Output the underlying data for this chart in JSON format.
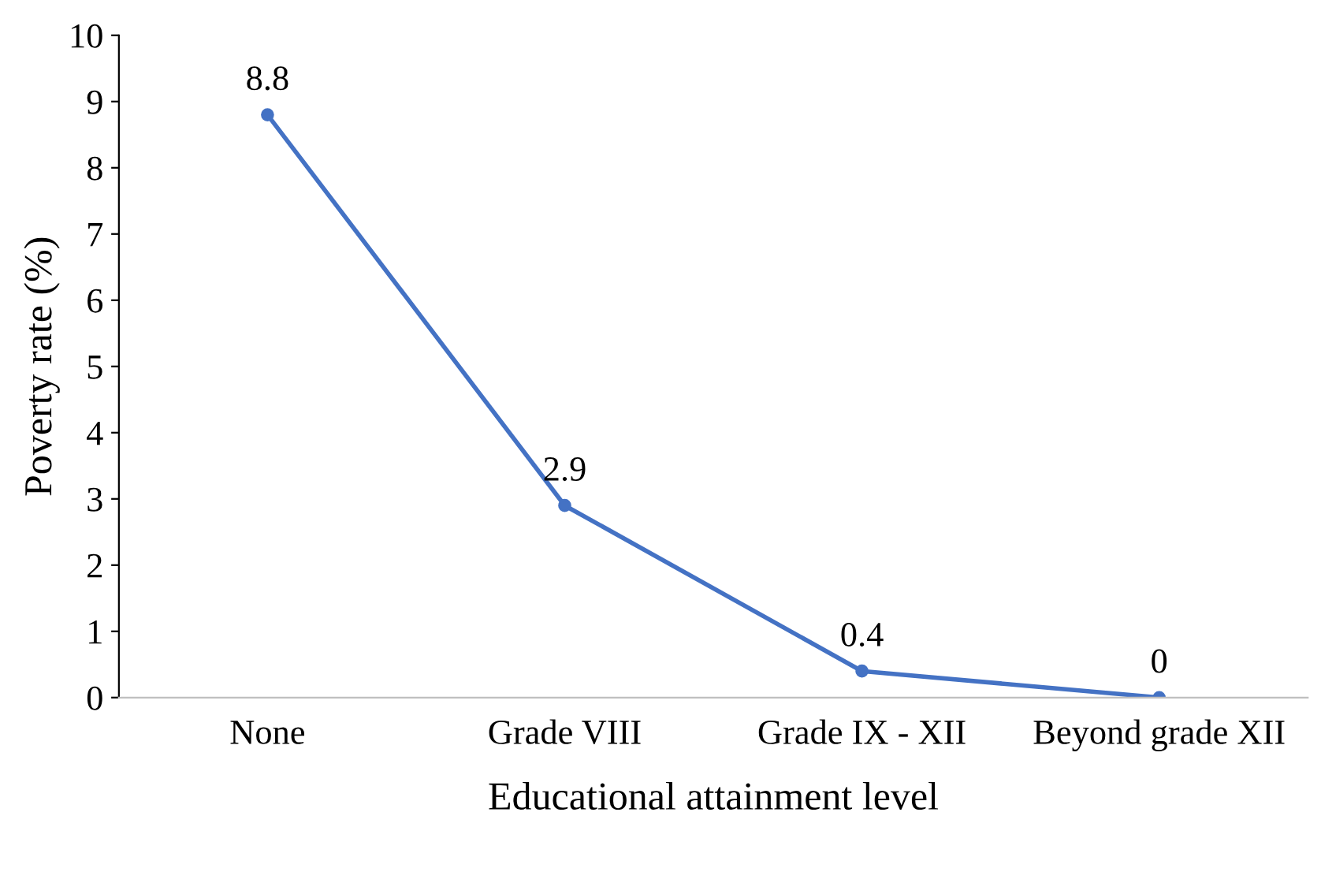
{
  "chart_data": {
    "type": "line",
    "xlabel": "Educational attainment level",
    "ylabel": "Poverty rate (%)",
    "categories": [
      "None",
      "Grade VIII",
      "Grade IX - XII",
      "Beyond grade XII"
    ],
    "series": [
      {
        "color": "#4472c4",
        "values": [
          8.8,
          2.9,
          0.4,
          0
        ]
      }
    ],
    "ylim": [
      0,
      10
    ],
    "yticks": [
      0,
      1,
      2,
      3,
      4,
      5,
      6,
      7,
      8,
      9,
      10
    ],
    "marker": "circle",
    "line_style": "solid",
    "data_labels": true,
    "grid": false,
    "legend": false
  }
}
